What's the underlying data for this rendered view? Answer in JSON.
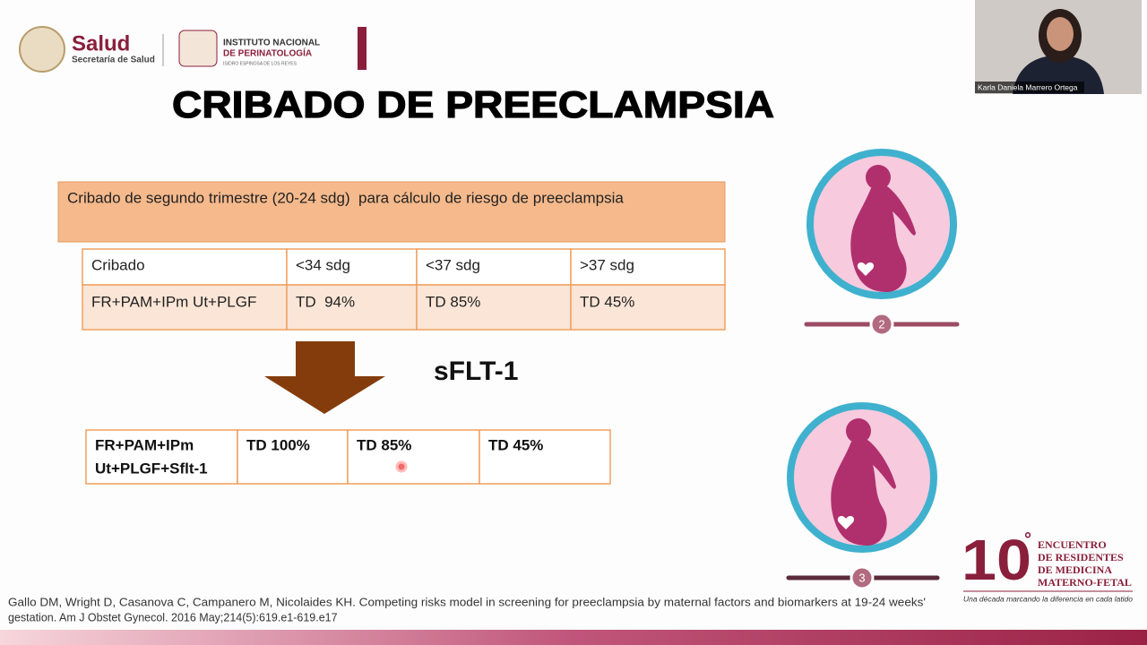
{
  "header": {
    "logo_salud": "Salud",
    "logo_secretaria": "Secretaría de Salud",
    "institute_line1": "INSTITUTO NACIONAL",
    "institute_line2": "DE PERINATOLOGÍA",
    "institute_line3": "ISIDRO ESPINOSA DE LOS REYES"
  },
  "title": "CRIBADO DE PREECLAMPSIA",
  "banner": "Cribado de segundo trimestre (20-24 sdg)  para cálculo de riesgo de preeclampsia",
  "table1": {
    "header": [
      "Cribado",
      "<34 sdg",
      "<37 sdg",
      ">37 sdg"
    ],
    "rows": [
      [
        "FR+PAM+IPm Ut+PLGF",
        "TD  94%",
        "TD 85%",
        "TD 45%"
      ]
    ]
  },
  "arrow_label": "sFLT-1",
  "table2": {
    "rows": [
      [
        [
          "FR+PAM+IPm",
          "Ut+PLGF+Sflt-1"
        ],
        "TD 100%",
        "TD 85%",
        "TD 45%"
      ]
    ]
  },
  "steps": [
    "2",
    "3"
  ],
  "video": {
    "participant": "Karla Daniela Marrero Ortega"
  },
  "event_logo": {
    "number": "10",
    "degree": "°",
    "lines": [
      "ENCUENTRO",
      "DE RESIDENTES",
      "DE MEDICINA",
      "MATERNO-FETAL"
    ],
    "tagline": "Una década marcando la diferencia en cada latido"
  },
  "citation": [
    "Gallo DM, Wright D, Casanova C, Campanero M, Nicolaides KH. Competing risks model in screening for preeclampsia by maternal factors and biomarkers at 19-24 weeks'",
    "gestation. Am J Obstet Gynecol. 2016 May;214(5):619.e1-619.e17"
  ]
}
